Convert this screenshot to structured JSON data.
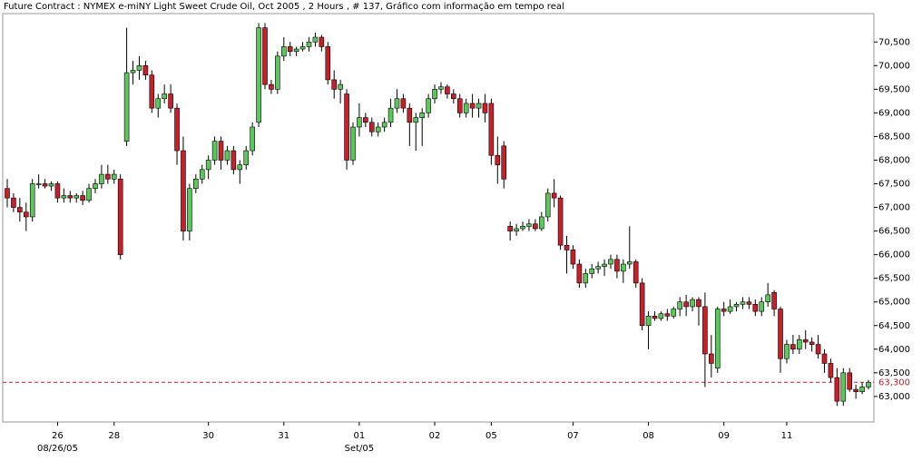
{
  "chart_data": {
    "type": "candlestick",
    "title": "Future Contract : NYMEX e-miNY Light Sweet Crude Oil, Oct 2005 , 2 Hours , # 137, Gráfico com informação em tempo real",
    "up_color": "#5cc85c",
    "down_color": "#c8202a",
    "ylim": [
      62460,
      71100
    ],
    "yticks": [
      {
        "value": 63000,
        "label": "63,000"
      },
      {
        "value": 63500,
        "label": "63,500"
      },
      {
        "value": 64000,
        "label": "64,000"
      },
      {
        "value": 64500,
        "label": "64,500"
      },
      {
        "value": 65000,
        "label": "65,000"
      },
      {
        "value": 65500,
        "label": "65,500"
      },
      {
        "value": 66000,
        "label": "66,000"
      },
      {
        "value": 66500,
        "label": "66,500"
      },
      {
        "value": 67000,
        "label": "67,000"
      },
      {
        "value": 67500,
        "label": "67,500"
      },
      {
        "value": 68000,
        "label": "68,000"
      },
      {
        "value": 68500,
        "label": "68,500"
      },
      {
        "value": 69000,
        "label": "69,000"
      },
      {
        "value": 69500,
        "label": "69,500"
      },
      {
        "value": 70000,
        "label": "70,000"
      },
      {
        "value": 70500,
        "label": "70,500"
      }
    ],
    "xlim": [
      0,
      137
    ],
    "xticks": [
      {
        "value": 8,
        "label": "26"
      },
      {
        "value": 17,
        "label": "28"
      },
      {
        "value": 32,
        "label": "30"
      },
      {
        "value": 44,
        "label": "31"
      },
      {
        "value": 56,
        "label": "01"
      },
      {
        "value": 68,
        "label": "02"
      },
      {
        "value": 77,
        "label": "05"
      },
      {
        "value": 90,
        "label": "07"
      },
      {
        "value": 102,
        "label": "08"
      },
      {
        "value": 114,
        "label": "09"
      },
      {
        "value": 124,
        "label": "11"
      }
    ],
    "xsublabels": [
      {
        "value": 8,
        "label": "08/26/05"
      },
      {
        "value": 56,
        "label": "Set/05"
      }
    ],
    "current_price": {
      "value": 63300,
      "label": "63,300",
      "color": "#c8202a"
    },
    "candles": [
      [
        67400,
        67600,
        67000,
        67200
      ],
      [
        67200,
        67300,
        66900,
        67000
      ],
      [
        67000,
        67200,
        66700,
        66900
      ],
      [
        66900,
        67100,
        66500,
        66800
      ],
      [
        66800,
        67600,
        66700,
        67500
      ],
      [
        67500,
        67700,
        67400,
        67500
      ],
      [
        67500,
        67600,
        67400,
        67450
      ],
      [
        67450,
        67550,
        67350,
        67500
      ],
      [
        67500,
        67550,
        67100,
        67200
      ],
      [
        67200,
        67400,
        67100,
        67250
      ],
      [
        67250,
        67350,
        67100,
        67200
      ],
      [
        67200,
        67300,
        67100,
        67250
      ],
      [
        67250,
        67350,
        67050,
        67150
      ],
      [
        67150,
        67500,
        67100,
        67400
      ],
      [
        67400,
        67600,
        67300,
        67500
      ],
      [
        67500,
        67900,
        67400,
        67700
      ],
      [
        67700,
        67900,
        67500,
        67600
      ],
      [
        67600,
        67800,
        67500,
        67700
      ],
      [
        67600,
        67700,
        65900,
        66000
      ],
      [
        68400,
        70800,
        68300,
        69850
      ],
      [
        69850,
        70100,
        69600,
        69900
      ],
      [
        69900,
        70200,
        69700,
        70000
      ],
      [
        70000,
        70100,
        69700,
        69800
      ],
      [
        69800,
        69900,
        69000,
        69100
      ],
      [
        69100,
        69400,
        68900,
        69300
      ],
      [
        69300,
        69600,
        69200,
        69400
      ],
      [
        69400,
        69600,
        69000,
        69100
      ],
      [
        69100,
        69200,
        67900,
        68200
      ],
      [
        68200,
        68500,
        66300,
        66500
      ],
      [
        66500,
        67500,
        66300,
        67400
      ],
      [
        67400,
        67700,
        67300,
        67600
      ],
      [
        67600,
        67900,
        67500,
        67800
      ],
      [
        67800,
        68100,
        67600,
        68000
      ],
      [
        68000,
        68500,
        67900,
        68400
      ],
      [
        68400,
        68500,
        67800,
        68000
      ],
      [
        68000,
        68300,
        67900,
        68200
      ],
      [
        68200,
        68300,
        67700,
        67800
      ],
      [
        67800,
        68000,
        67500,
        67900
      ],
      [
        67900,
        68300,
        67800,
        68200
      ],
      [
        68200,
        68800,
        68100,
        68700
      ],
      [
        68800,
        70900,
        68700,
        70800
      ],
      [
        70800,
        70900,
        69500,
        69600
      ],
      [
        69600,
        69700,
        69400,
        69500
      ],
      [
        69500,
        70300,
        69400,
        70200
      ],
      [
        70200,
        70600,
        70100,
        70400
      ],
      [
        70400,
        70500,
        70200,
        70300
      ],
      [
        70300,
        70400,
        70200,
        70350
      ],
      [
        70350,
        70500,
        70300,
        70400
      ],
      [
        70400,
        70600,
        70300,
        70500
      ],
      [
        70500,
        70700,
        70400,
        70600
      ],
      [
        70600,
        70650,
        70300,
        70400
      ],
      [
        70400,
        70500,
        69600,
        69700
      ],
      [
        69700,
        69900,
        69300,
        69500
      ],
      [
        69500,
        69700,
        69200,
        69600
      ],
      [
        69400,
        69500,
        67800,
        68000
      ],
      [
        68000,
        68800,
        67900,
        68700
      ],
      [
        68700,
        69200,
        68500,
        68900
      ],
      [
        68900,
        69000,
        68700,
        68800
      ],
      [
        68800,
        68900,
        68500,
        68600
      ],
      [
        68600,
        68800,
        68500,
        68700
      ],
      [
        68700,
        68900,
        68600,
        68800
      ],
      [
        68800,
        69300,
        68700,
        69100
      ],
      [
        69100,
        69500,
        69000,
        69300
      ],
      [
        69300,
        69400,
        69000,
        69100
      ],
      [
        69100,
        69200,
        68300,
        68800
      ],
      [
        68800,
        69000,
        68200,
        68900
      ],
      [
        68900,
        69100,
        68300,
        69000
      ],
      [
        69000,
        69400,
        68900,
        69300
      ],
      [
        69300,
        69600,
        69200,
        69500
      ],
      [
        69500,
        69650,
        69400,
        69550
      ],
      [
        69550,
        69600,
        69300,
        69400
      ],
      [
        69400,
        69500,
        69200,
        69300
      ],
      [
        69300,
        69400,
        68900,
        69000
      ],
      [
        69000,
        69300,
        68900,
        69200
      ],
      [
        69200,
        69400,
        68900,
        69100
      ],
      [
        69100,
        69300,
        68900,
        69200
      ],
      [
        69200,
        69400,
        68800,
        69000
      ],
      [
        69200,
        69300,
        67900,
        68100
      ],
      [
        68100,
        68500,
        67500,
        67900
      ],
      [
        68300,
        68400,
        67400,
        67600
      ],
      [
        66600,
        66700,
        66300,
        66500
      ],
      [
        66500,
        66650,
        66400,
        66550
      ],
      [
        66550,
        66700,
        66500,
        66600
      ],
      [
        66600,
        66750,
        66500,
        66650
      ],
      [
        66650,
        66750,
        66500,
        66550
      ],
      [
        66550,
        66900,
        66500,
        66800
      ],
      [
        66800,
        67400,
        66700,
        67300
      ],
      [
        67300,
        67600,
        67000,
        67200
      ],
      [
        67200,
        67250,
        66100,
        66200
      ],
      [
        66200,
        66400,
        65600,
        66100
      ],
      [
        66100,
        66200,
        65700,
        65800
      ],
      [
        65800,
        65900,
        65300,
        65400
      ],
      [
        65400,
        65700,
        65300,
        65600
      ],
      [
        65600,
        65800,
        65500,
        65700
      ],
      [
        65700,
        65850,
        65600,
        65750
      ],
      [
        65750,
        65900,
        65550,
        65800
      ],
      [
        65800,
        66000,
        65700,
        65900
      ],
      [
        65900,
        66000,
        65500,
        65650
      ],
      [
        65650,
        65900,
        65400,
        65800
      ],
      [
        65800,
        66600,
        65700,
        65850
      ],
      [
        65850,
        65900,
        65300,
        65400
      ],
      [
        65400,
        65500,
        64400,
        64500
      ],
      [
        64500,
        64800,
        64000,
        64700
      ],
      [
        64700,
        64800,
        64600,
        64650
      ],
      [
        64650,
        64800,
        64600,
        64750
      ],
      [
        64750,
        64850,
        64600,
        64700
      ],
      [
        64700,
        64900,
        64650,
        64850
      ],
      [
        64850,
        65100,
        64700,
        65000
      ],
      [
        65000,
        65150,
        64700,
        64900
      ],
      [
        64900,
        65100,
        64800,
        65050
      ],
      [
        65050,
        65100,
        64500,
        64900
      ],
      [
        64900,
        65200,
        63200,
        63900
      ],
      [
        63900,
        64300,
        63400,
        63700
      ],
      [
        63600,
        64900,
        63500,
        64850
      ],
      [
        64850,
        65000,
        64700,
        64800
      ],
      [
        64800,
        65050,
        64750,
        64900
      ],
      [
        64900,
        65000,
        64800,
        64950
      ],
      [
        64950,
        65100,
        64850,
        65000
      ],
      [
        65000,
        65100,
        64850,
        64950
      ],
      [
        64950,
        65050,
        64700,
        64800
      ],
      [
        64800,
        65100,
        64700,
        65000
      ],
      [
        65000,
        65400,
        64900,
        65150
      ],
      [
        65200,
        65250,
        64700,
        64850
      ],
      [
        64850,
        64900,
        63500,
        63800
      ],
      [
        63800,
        64200,
        63700,
        64100
      ],
      [
        64100,
        64300,
        63900,
        64000
      ],
      [
        64000,
        64300,
        63900,
        64200
      ],
      [
        64200,
        64400,
        64000,
        64150
      ],
      [
        64150,
        64250,
        63950,
        64100
      ],
      [
        64100,
        64300,
        63800,
        63900
      ],
      [
        63900,
        64000,
        63500,
        63700
      ],
      [
        63700,
        63800,
        63300,
        63400
      ],
      [
        63400,
        63600,
        62800,
        62900
      ],
      [
        62900,
        63600,
        62800,
        63500
      ],
      [
        63500,
        63600,
        63100,
        63150
      ],
      [
        63150,
        63250,
        62950,
        63100
      ],
      [
        63100,
        63300,
        63050,
        63200
      ],
      [
        63200,
        63350,
        63150,
        63300
      ]
    ]
  }
}
